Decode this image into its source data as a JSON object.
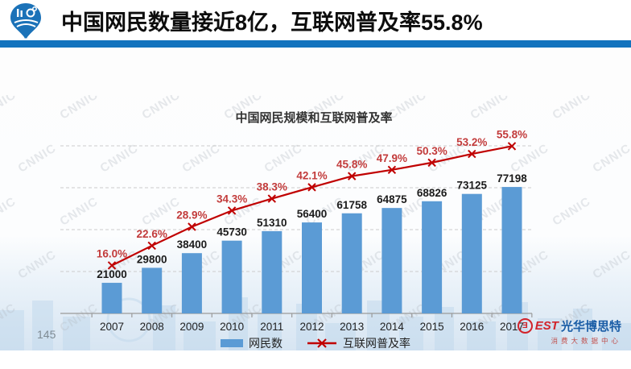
{
  "header": {
    "title": "中国网民数量接近8亿，互联网普及率55.8%",
    "accent_blue": "#1273BE",
    "logo_blue": "#1B72B8"
  },
  "page_number": "145",
  "footer_logo": {
    "glyph": "Ǝ",
    "brand": "EST",
    "name": "光华博思特",
    "subtitle": "消费大数据中心",
    "red": "#d2232a",
    "blue": "#1a5da6"
  },
  "chart_data": {
    "type": "bar",
    "title": "中国网民规模和互联网普及率",
    "categories": [
      "2007",
      "2008",
      "2009",
      "2010",
      "2011",
      "2012",
      "2013",
      "2014",
      "2015",
      "2016",
      "2017"
    ],
    "series": [
      {
        "name": "网民数",
        "type": "bar",
        "color": "#5B9BD5",
        "values": [
          21000,
          29800,
          38400,
          45730,
          51310,
          56400,
          61758,
          64875,
          68826,
          73125,
          77198
        ]
      },
      {
        "name": "互联网普及率",
        "type": "line",
        "color": "#C00000",
        "label_color": "#C23B3B",
        "unit": "%",
        "values": [
          16.0,
          22.6,
          28.9,
          34.3,
          38.3,
          42.1,
          45.8,
          47.9,
          50.3,
          53.2,
          55.8
        ]
      }
    ],
    "xlabel": "",
    "ylabel": "",
    "legend_position": "bottom",
    "grid": "horizontal-dashed",
    "data_labels": true,
    "watermark": "CNNIC"
  }
}
